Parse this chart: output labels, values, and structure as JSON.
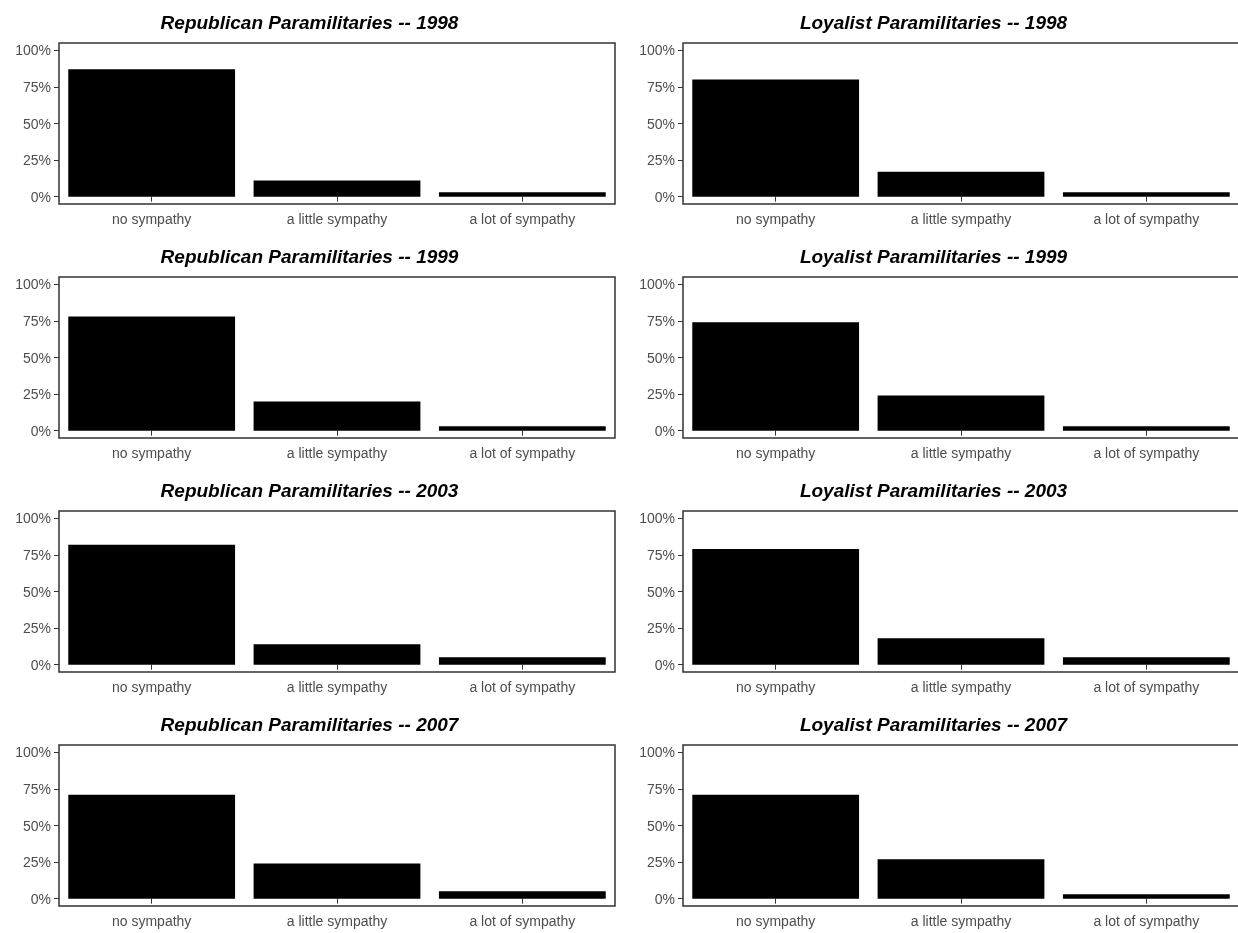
{
  "chart_data": [
    {
      "type": "bar",
      "title": "Republican Paramilitaries -- 1998",
      "categories": [
        "no sympathy",
        "a little sympathy",
        "a lot of sympathy"
      ],
      "values": [
        87,
        11,
        3
      ],
      "color": "#000000",
      "ylim": [
        -5,
        105
      ],
      "yticks": [
        {
          "value": 0,
          "label": "0%"
        },
        {
          "value": 25,
          "label": "25%"
        },
        {
          "value": 50,
          "label": "50%"
        },
        {
          "value": 75,
          "label": "75%"
        },
        {
          "value": 100,
          "label": "100%"
        }
      ],
      "grid": false
    },
    {
      "type": "bar",
      "title": "Loyalist Paramilitaries -- 1998",
      "categories": [
        "no sympathy",
        "a little sympathy",
        "a lot of sympathy"
      ],
      "values": [
        80,
        17,
        3
      ],
      "color": "#000000",
      "ylim": [
        -5,
        105
      ],
      "yticks": [
        {
          "value": 0,
          "label": "0%"
        },
        {
          "value": 25,
          "label": "25%"
        },
        {
          "value": 50,
          "label": "50%"
        },
        {
          "value": 75,
          "label": "75%"
        },
        {
          "value": 100,
          "label": "100%"
        }
      ],
      "grid": false
    },
    {
      "type": "bar",
      "title": "Republican Paramilitaries -- 1999",
      "categories": [
        "no sympathy",
        "a little sympathy",
        "a lot of sympathy"
      ],
      "values": [
        78,
        20,
        3
      ],
      "color": "#000000",
      "ylim": [
        -5,
        105
      ],
      "yticks": [
        {
          "value": 0,
          "label": "0%"
        },
        {
          "value": 25,
          "label": "25%"
        },
        {
          "value": 50,
          "label": "50%"
        },
        {
          "value": 75,
          "label": "75%"
        },
        {
          "value": 100,
          "label": "100%"
        }
      ],
      "grid": false
    },
    {
      "type": "bar",
      "title": "Loyalist Paramilitaries -- 1999",
      "categories": [
        "no sympathy",
        "a little sympathy",
        "a lot of sympathy"
      ],
      "values": [
        74,
        24,
        3
      ],
      "color": "#000000",
      "ylim": [
        -5,
        105
      ],
      "yticks": [
        {
          "value": 0,
          "label": "0%"
        },
        {
          "value": 25,
          "label": "25%"
        },
        {
          "value": 50,
          "label": "50%"
        },
        {
          "value": 75,
          "label": "75%"
        },
        {
          "value": 100,
          "label": "100%"
        }
      ],
      "grid": false
    },
    {
      "type": "bar",
      "title": "Republican Paramilitaries -- 2003",
      "categories": [
        "no sympathy",
        "a little sympathy",
        "a lot of sympathy"
      ],
      "values": [
        82,
        14,
        5
      ],
      "color": "#000000",
      "ylim": [
        -5,
        105
      ],
      "yticks": [
        {
          "value": 0,
          "label": "0%"
        },
        {
          "value": 25,
          "label": "25%"
        },
        {
          "value": 50,
          "label": "50%"
        },
        {
          "value": 75,
          "label": "75%"
        },
        {
          "value": 100,
          "label": "100%"
        }
      ],
      "grid": false
    },
    {
      "type": "bar",
      "title": "Loyalist Paramilitaries -- 2003",
      "categories": [
        "no sympathy",
        "a little sympathy",
        "a lot of sympathy"
      ],
      "values": [
        79,
        18,
        5
      ],
      "color": "#000000",
      "ylim": [
        -5,
        105
      ],
      "yticks": [
        {
          "value": 0,
          "label": "0%"
        },
        {
          "value": 25,
          "label": "25%"
        },
        {
          "value": 50,
          "label": "50%"
        },
        {
          "value": 75,
          "label": "75%"
        },
        {
          "value": 100,
          "label": "100%"
        }
      ],
      "grid": false
    },
    {
      "type": "bar",
      "title": "Republican Paramilitaries -- 2007",
      "categories": [
        "no sympathy",
        "a little sympathy",
        "a lot of sympathy"
      ],
      "values": [
        71,
        24,
        5
      ],
      "color": "#000000",
      "ylim": [
        -5,
        105
      ],
      "yticks": [
        {
          "value": 0,
          "label": "0%"
        },
        {
          "value": 25,
          "label": "25%"
        },
        {
          "value": 50,
          "label": "50%"
        },
        {
          "value": 75,
          "label": "75%"
        },
        {
          "value": 100,
          "label": "100%"
        }
      ],
      "grid": false
    },
    {
      "type": "bar",
      "title": "Loyalist Paramilitaries -- 2007",
      "categories": [
        "no sympathy",
        "a little sympathy",
        "a lot of sympathy"
      ],
      "values": [
        71,
        27,
        3
      ],
      "color": "#000000",
      "ylim": [
        -5,
        105
      ],
      "yticks": [
        {
          "value": 0,
          "label": "0%"
        },
        {
          "value": 25,
          "label": "25%"
        },
        {
          "value": 50,
          "label": "50%"
        },
        {
          "value": 75,
          "label": "75%"
        },
        {
          "value": 100,
          "label": "100%"
        }
      ],
      "grid": false
    }
  ]
}
